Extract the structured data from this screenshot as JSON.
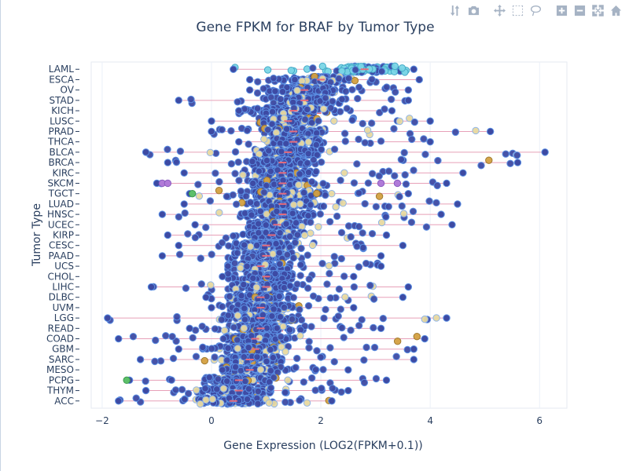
{
  "chart_data": {
    "type": "scatter",
    "title": "Gene FPKM for BRAF by Tumor Type",
    "xlabel": "Gene Expression (LOG2(FPKM+0.1))",
    "ylabel": "Tumor Type",
    "xlim": [
      -2.2,
      6.5
    ],
    "x_ticks": [
      -2,
      0,
      2,
      4,
      6
    ],
    "x_tick_labels": [
      "−2",
      "0",
      "2",
      "4",
      "6"
    ],
    "grid": true,
    "legend": "none",
    "categories": [
      "LAML",
      "ESCA",
      "OV",
      "STAD",
      "KICH",
      "LUSC",
      "PRAD",
      "THCA",
      "BLCA",
      "BRCA",
      "KIRC",
      "SKCM",
      "TGCT",
      "LUAD",
      "HNSC",
      "UCEC",
      "KIRP",
      "CESC",
      "PAAD",
      "UCS",
      "CHOL",
      "LIHC",
      "DLBC",
      "UVM",
      "LGG",
      "READ",
      "COAD",
      "GBM",
      "SARC",
      "MESO",
      "PCPG",
      "THYM",
      "ACC"
    ],
    "series": [
      {
        "min": [
          0.4,
          0.7,
          0.7,
          -0.6,
          0.5,
          0.0,
          0.0,
          0.5,
          -1.2,
          -0.8,
          -0.5,
          -1.0,
          -0.4,
          -0.5,
          -0.9,
          -0.3,
          -0.8,
          -0.6,
          -0.9,
          0.3,
          0.2,
          -1.1,
          -0.1,
          0.0,
          -1.9,
          -0.4,
          -1.7,
          -0.6,
          -1.3,
          0.2,
          -1.5,
          -1.2,
          -1.7
        ],
        "q1": [
          2.4,
          1.7,
          1.3,
          1.3,
          1.0,
          1.1,
          1.2,
          1.2,
          1.0,
          0.9,
          0.9,
          0.9,
          0.9,
          0.9,
          0.9,
          0.9,
          0.7,
          0.7,
          0.7,
          0.6,
          0.7,
          0.6,
          0.6,
          0.6,
          0.5,
          0.5,
          0.4,
          0.4,
          0.3,
          0.3,
          0.1,
          0.1,
          0.0
        ],
        "median": [
          2.8,
          2.0,
          1.7,
          1.7,
          1.5,
          1.4,
          1.5,
          1.5,
          1.4,
          1.3,
          1.3,
          1.3,
          1.3,
          1.3,
          1.3,
          1.2,
          1.1,
          1.0,
          1.0,
          0.9,
          1.0,
          1.0,
          0.9,
          0.9,
          0.9,
          0.9,
          0.8,
          0.8,
          0.7,
          0.7,
          0.5,
          0.5,
          0.4
        ],
        "q3": [
          3.1,
          2.4,
          2.1,
          2.1,
          2.0,
          1.8,
          1.9,
          1.9,
          1.8,
          1.7,
          1.7,
          1.7,
          1.8,
          1.7,
          1.7,
          1.6,
          1.5,
          1.4,
          1.4,
          1.3,
          1.4,
          1.4,
          1.3,
          1.3,
          1.3,
          1.3,
          1.2,
          1.2,
          1.1,
          1.1,
          1.0,
          1.0,
          0.9
        ],
        "max": [
          3.7,
          3.8,
          3.6,
          3.6,
          3.3,
          4.0,
          5.1,
          4.0,
          6.1,
          5.6,
          4.6,
          4.3,
          3.6,
          4.5,
          4.2,
          4.4,
          3.2,
          3.5,
          3.1,
          3.1,
          2.6,
          3.6,
          3.5,
          2.6,
          4.3,
          3.1,
          3.9,
          3.7,
          3.7,
          2.5,
          3.2,
          2.5,
          2.2
        ]
      }
    ]
  },
  "modebar": {
    "buttons": [
      "compare-hover-icon",
      "camera-icon",
      "pan-icon",
      "box-select-icon",
      "lasso-icon",
      "zoom-in-icon",
      "zoom-out-icon",
      "autoscale-icon",
      "home-icon"
    ]
  }
}
